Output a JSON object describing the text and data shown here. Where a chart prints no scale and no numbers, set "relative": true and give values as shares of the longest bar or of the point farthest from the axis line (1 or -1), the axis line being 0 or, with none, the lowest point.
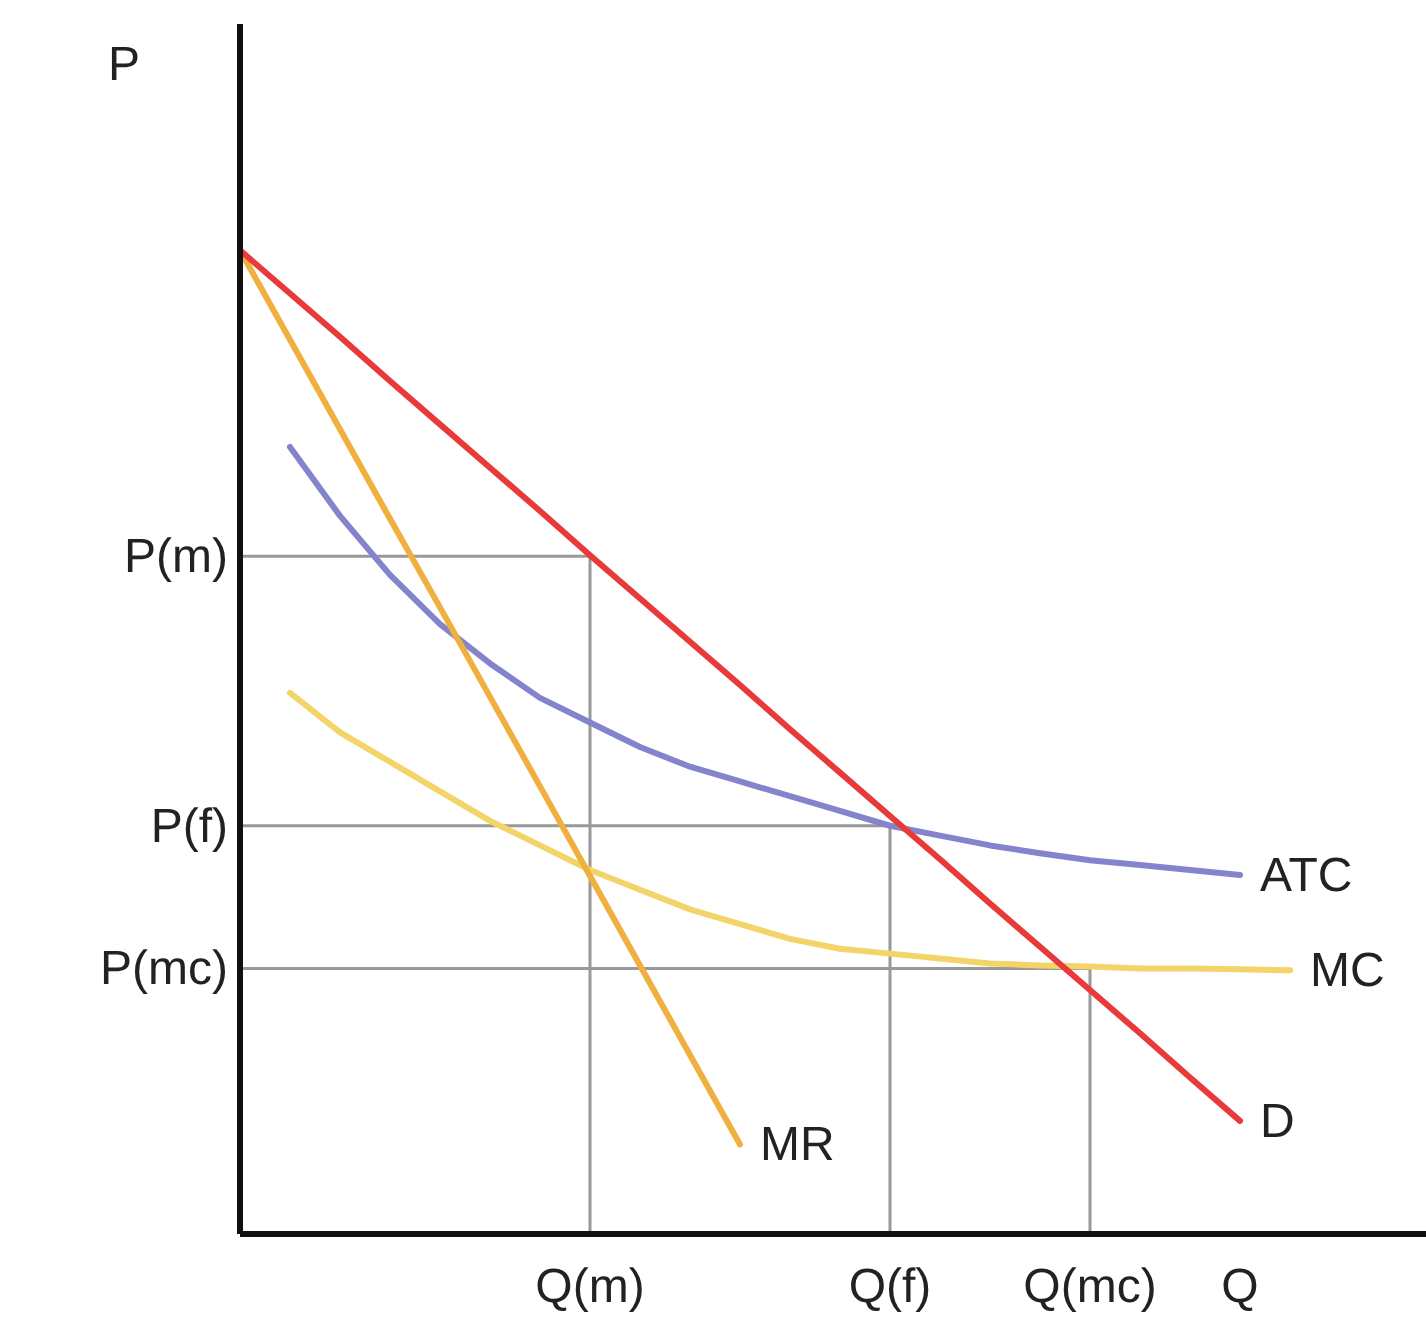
{
  "chart_data": {
    "type": "line",
    "relative": true,
    "xlabel": null,
    "ylabel": "P",
    "line_style": "solid",
    "categories": [
      null,
      null,
      null,
      null,
      null,
      null,
      null,
      "Q(m)",
      null,
      null,
      null,
      null,
      null,
      "Q(f)",
      null,
      null,
      null,
      "Q(mc)",
      null,
      null,
      "Q",
      null,
      null,
      null
    ],
    "ref_lines": [
      {
        "axis": "y",
        "value": 0.689,
        "label": "P(m)",
        "color": "#999999"
      },
      {
        "axis": "y",
        "value": 0.415,
        "label": "P(f)",
        "color": "#999999"
      },
      {
        "axis": "y",
        "value": 0.27,
        "label": "P(mc)",
        "color": "#999999"
      },
      {
        "axis": "x",
        "value": "Q(m)",
        "color": "#999999"
      },
      {
        "axis": "x",
        "value": "Q(f)",
        "color": "#999999"
      },
      {
        "axis": "x",
        "value": "Q(mc)",
        "color": "#999999"
      }
    ],
    "series": [
      {
        "name": "ATC",
        "color": "#8484cc",
        "values": [
          null,
          0.8,
          0.73,
          0.67,
          0.62,
          0.58,
          0.545,
          0.52,
          0.495,
          0.475,
          0.46,
          0.445,
          0.43,
          0.415,
          0.405,
          0.395,
          0.387,
          0.38,
          0.375,
          0.37,
          0.365,
          null,
          null,
          null
        ]
      },
      {
        "name": "MC",
        "color": "#f2d468",
        "values": [
          null,
          0.55,
          0.51,
          0.48,
          0.45,
          0.42,
          0.395,
          0.37,
          0.35,
          0.33,
          0.315,
          0.3,
          0.29,
          0.285,
          0.28,
          0.275,
          0.273,
          0.272,
          0.27,
          0.27,
          0.269,
          0.268,
          null,
          null
        ]
      },
      {
        "name": "MR",
        "color": "#f0b040",
        "values": [
          1.0,
          0.909,
          0.818,
          0.727,
          0.637,
          0.546,
          0.455,
          0.364,
          0.273,
          0.182,
          0.091,
          null,
          null,
          null,
          null,
          null,
          null,
          null,
          null,
          null,
          null,
          null,
          null,
          null
        ]
      },
      {
        "name": "D",
        "color": "#e83a3a",
        "values": [
          1.0,
          0.956,
          0.912,
          0.867,
          0.823,
          0.779,
          0.735,
          0.69,
          0.646,
          0.602,
          0.558,
          0.513,
          0.469,
          0.425,
          0.381,
          0.336,
          0.292,
          0.248,
          0.204,
          0.159,
          0.115,
          null,
          null,
          null
        ]
      }
    ]
  }
}
